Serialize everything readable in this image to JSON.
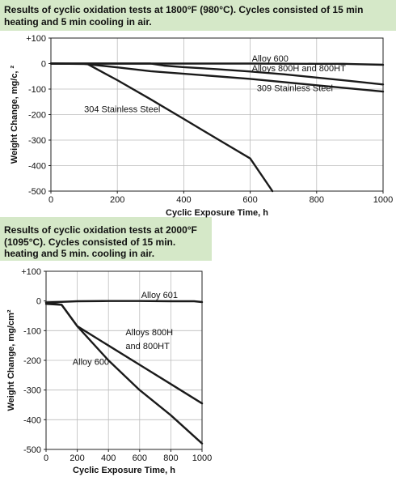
{
  "chart_data": [
    {
      "type": "line",
      "caption": "Results of cyclic oxidation tests at 1800°F (980°C). Cycles consisted of 15 min heating and 5 min cooling in air.",
      "xlabel": "Cyclic Exposure Time, h",
      "ylabel": "Weight Change, mg/c, ²",
      "xlim": [
        0,
        1000
      ],
      "ylim": [
        -500,
        100
      ],
      "xticks": [
        "0",
        "200",
        "400",
        "600",
        "800",
        "1000"
      ],
      "yticks": [
        "+100",
        "0",
        "-100",
        "-200",
        "-300",
        "-400",
        "-500"
      ],
      "grid": true,
      "series": [
        {
          "name": "Alloy 600",
          "points": [
            [
              0,
              0
            ],
            [
              200,
              0
            ],
            [
              400,
              0
            ],
            [
              600,
              0
            ],
            [
              800,
              -1
            ],
            [
              880,
              -1
            ],
            [
              1000,
              -5
            ]
          ]
        },
        {
          "name": "Alloys 800H and 800HT",
          "points": [
            [
              0,
              0
            ],
            [
              300,
              0
            ],
            [
              340,
              -8
            ],
            [
              400,
              -14
            ],
            [
              500,
              -22
            ],
            [
              600,
              -31
            ],
            [
              700,
              -42
            ],
            [
              800,
              -55
            ],
            [
              900,
              -68
            ],
            [
              1000,
              -82
            ]
          ]
        },
        {
          "name": "309 Stainless Steel",
          "points": [
            [
              0,
              0
            ],
            [
              100,
              -1
            ],
            [
              200,
              -15
            ],
            [
              300,
              -30
            ],
            [
              400,
              -40
            ],
            [
              600,
              -60
            ],
            [
              800,
              -85
            ],
            [
              1000,
              -110
            ]
          ]
        },
        {
          "name": "304 Stainless Steel",
          "points": [
            [
              0,
              0
            ],
            [
              110,
              -2
            ],
            [
              200,
              -65
            ],
            [
              300,
              -140
            ],
            [
              400,
              -217
            ],
            [
              500,
              -295
            ],
            [
              600,
              -372
            ],
            [
              667,
              -500
            ]
          ]
        }
      ],
      "annotations": [
        {
          "text": "Alloy 600",
          "x": 605,
          "y": 8
        },
        {
          "text": "Alloys 800H and 800HT",
          "x": 605,
          "y": -30
        },
        {
          "text": "309 Stainless Steel",
          "x": 620,
          "y": -108
        },
        {
          "text": "304 Stainless Steel",
          "x": 100,
          "y": -190
        }
      ]
    },
    {
      "type": "line",
      "caption": "Results of cyclic oxidation tests at 2000°F (1095°C). Cycles consisted of 15 min. heating and 5 min. cooling in air.",
      "xlabel": "Cyclic Exposure Time, h",
      "ylabel": "Weight Change, mg/cm²",
      "xlim": [
        0,
        1000
      ],
      "ylim": [
        -500,
        100
      ],
      "xticks": [
        "0",
        "200",
        "400",
        "600",
        "800",
        "1000"
      ],
      "yticks": [
        "+100",
        "0",
        "-100",
        "-200",
        "-300",
        "-400",
        "-500"
      ],
      "grid": true,
      "series": [
        {
          "name": "Alloy 601",
          "points": [
            [
              0,
              -5
            ],
            [
              100,
              -3
            ],
            [
              200,
              -1
            ],
            [
              400,
              0
            ],
            [
              600,
              0
            ],
            [
              800,
              -1
            ],
            [
              950,
              -1
            ],
            [
              1000,
              -4
            ]
          ]
        },
        {
          "name": "Alloys 800H and 800HT",
          "points": [
            [
              0,
              -10
            ],
            [
              100,
              -13
            ],
            [
              200,
              -85
            ],
            [
              400,
              -150
            ],
            [
              600,
              -215
            ],
            [
              800,
              -280
            ],
            [
              1000,
              -345
            ]
          ]
        },
        {
          "name": "Alloy 600",
          "points": [
            [
              0,
              -5
            ],
            [
              100,
              -13
            ],
            [
              200,
              -85
            ],
            [
              400,
              -200
            ],
            [
              600,
              -300
            ],
            [
              800,
              -385
            ],
            [
              1000,
              -480
            ]
          ]
        }
      ],
      "annotations": [
        {
          "text": "Alloy 601",
          "x": 610,
          "y": 10
        },
        {
          "text": "Alloys 800H",
          "x": 510,
          "y": -115
        },
        {
          "text": "and 800HT",
          "x": 510,
          "y": -162
        },
        {
          "text": "Alloy 600",
          "x": 170,
          "y": -215
        }
      ]
    }
  ]
}
